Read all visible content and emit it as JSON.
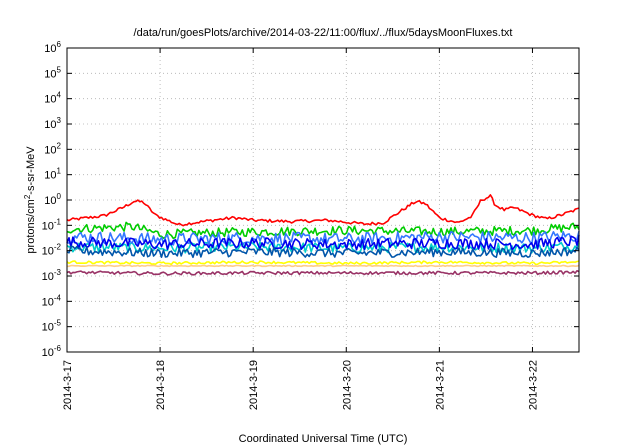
{
  "chart_data": {
    "type": "line",
    "title": "/data/run/goesPlots/archive/2014-03-22/11:00/flux/../flux/5daysMoonFluxes.txt",
    "xlabel": "Coordinated Universal Time (UTC)",
    "ylabel": "protons/cm²-s-sr-MeV",
    "ylabel_parts": {
      "pre": "protons/cm",
      "sup": "2",
      "post": "-s-sr-MeV"
    },
    "y_scale": "log",
    "ylim_exponents": [
      -6,
      6
    ],
    "y_ticks": [
      {
        "base": "10",
        "exp": "-6"
      },
      {
        "base": "10",
        "exp": "-5"
      },
      {
        "base": "10",
        "exp": "-4"
      },
      {
        "base": "10",
        "exp": "-3"
      },
      {
        "base": "10",
        "exp": "-2"
      },
      {
        "base": "10",
        "exp": "-1"
      },
      {
        "base": "10",
        "exp": "0"
      },
      {
        "base": "10",
        "exp": "1"
      },
      {
        "base": "10",
        "exp": "2"
      },
      {
        "base": "10",
        "exp": "3"
      },
      {
        "base": "10",
        "exp": "4"
      },
      {
        "base": "10",
        "exp": "5"
      },
      {
        "base": "10",
        "exp": "6"
      }
    ],
    "x_start": "2014-03-17",
    "x_end": "2014-03-22 12:00",
    "x_tick_labels": [
      "2014-3-17",
      "2014-3-18",
      "2014-3-19",
      "2014-3-20",
      "2014-3-21",
      "2014-3-22"
    ],
    "grid": true,
    "series": [
      {
        "color": "#ff0000",
        "base": [
          [
            0,
            -0.8
          ],
          [
            0.4,
            -0.62
          ],
          [
            0.6,
            -0.3
          ],
          [
            0.72,
            -0.05
          ],
          [
            0.82,
            -0.08
          ],
          [
            0.95,
            -0.6
          ],
          [
            1.2,
            -0.98
          ],
          [
            1.6,
            -0.78
          ],
          [
            1.8,
            -0.7
          ],
          [
            2.0,
            -0.8
          ],
          [
            2.4,
            -0.85
          ],
          [
            2.8,
            -0.8
          ],
          [
            3.2,
            -0.95
          ],
          [
            3.4,
            -0.9
          ],
          [
            3.6,
            -0.4
          ],
          [
            3.75,
            -0.05
          ],
          [
            3.85,
            -0.15
          ],
          [
            4.0,
            -0.7
          ],
          [
            4.2,
            -0.9
          ],
          [
            4.35,
            -0.65
          ],
          [
            4.45,
            0.0
          ],
          [
            4.55,
            0.15
          ],
          [
            4.6,
            -0.2
          ],
          [
            4.7,
            -0.4
          ],
          [
            4.8,
            -0.3
          ],
          [
            5.0,
            -0.6
          ],
          [
            5.15,
            -0.75
          ],
          [
            5.3,
            -0.6
          ],
          [
            5.5,
            -0.35
          ]
        ],
        "noise": 0.06
      },
      {
        "color": "#00cc00",
        "base": [
          [
            0,
            -1.15
          ],
          [
            0.7,
            -1.05
          ],
          [
            1.0,
            -1.35
          ],
          [
            2.0,
            -1.25
          ],
          [
            3.0,
            -1.2
          ],
          [
            4.0,
            -1.25
          ],
          [
            5.0,
            -1.2
          ],
          [
            5.5,
            -1.05
          ]
        ],
        "noise": 0.18
      },
      {
        "color": "#00cccc",
        "base": [
          [
            0,
            -1.85
          ],
          [
            1.0,
            -1.9
          ],
          [
            2.0,
            -1.85
          ],
          [
            3.0,
            -1.9
          ],
          [
            4.0,
            -1.85
          ],
          [
            5.0,
            -1.9
          ],
          [
            5.5,
            -1.8
          ]
        ],
        "noise": 0.2
      },
      {
        "color": "#3377ff",
        "base": [
          [
            0,
            -1.45
          ],
          [
            1.0,
            -1.55
          ],
          [
            2.0,
            -1.5
          ],
          [
            3.0,
            -1.55
          ],
          [
            4.0,
            -1.45
          ],
          [
            5.0,
            -1.5
          ],
          [
            5.5,
            -1.4
          ]
        ],
        "noise": 0.25
      },
      {
        "color": "#0000ee",
        "base": [
          [
            0,
            -1.65
          ],
          [
            1.0,
            -1.75
          ],
          [
            2.0,
            -1.7
          ],
          [
            3.0,
            -1.75
          ],
          [
            4.0,
            -1.7
          ],
          [
            5.0,
            -1.75
          ],
          [
            5.5,
            -1.6
          ]
        ],
        "noise": 0.22
      },
      {
        "color": "#0055aa",
        "base": [
          [
            0,
            -2.0
          ],
          [
            1.0,
            -2.1
          ],
          [
            2.0,
            -2.05
          ],
          [
            3.0,
            -2.1
          ],
          [
            4.0,
            -2.05
          ],
          [
            5.0,
            -2.1
          ],
          [
            5.5,
            -2.0
          ]
        ],
        "noise": 0.18
      },
      {
        "color": "#ffff00",
        "base": [
          [
            0,
            -2.45
          ],
          [
            1.0,
            -2.5
          ],
          [
            2.0,
            -2.45
          ],
          [
            3.0,
            -2.5
          ],
          [
            4.0,
            -2.45
          ],
          [
            5.0,
            -2.5
          ],
          [
            5.5,
            -2.45
          ]
        ],
        "noise": 0.05
      },
      {
        "color": "#ffcc88",
        "base": [
          [
            0,
            -2.6
          ],
          [
            2.0,
            -2.6
          ],
          [
            4.0,
            -2.6
          ],
          [
            5.5,
            -2.6
          ]
        ],
        "noise": 0.02
      },
      {
        "color": "#993366",
        "base": [
          [
            0,
            -2.85
          ],
          [
            1.0,
            -2.9
          ],
          [
            2.0,
            -2.88
          ],
          [
            3.0,
            -2.88
          ],
          [
            4.0,
            -2.88
          ],
          [
            5.0,
            -2.88
          ],
          [
            5.5,
            -2.85
          ]
        ],
        "noise": 0.06
      }
    ]
  }
}
